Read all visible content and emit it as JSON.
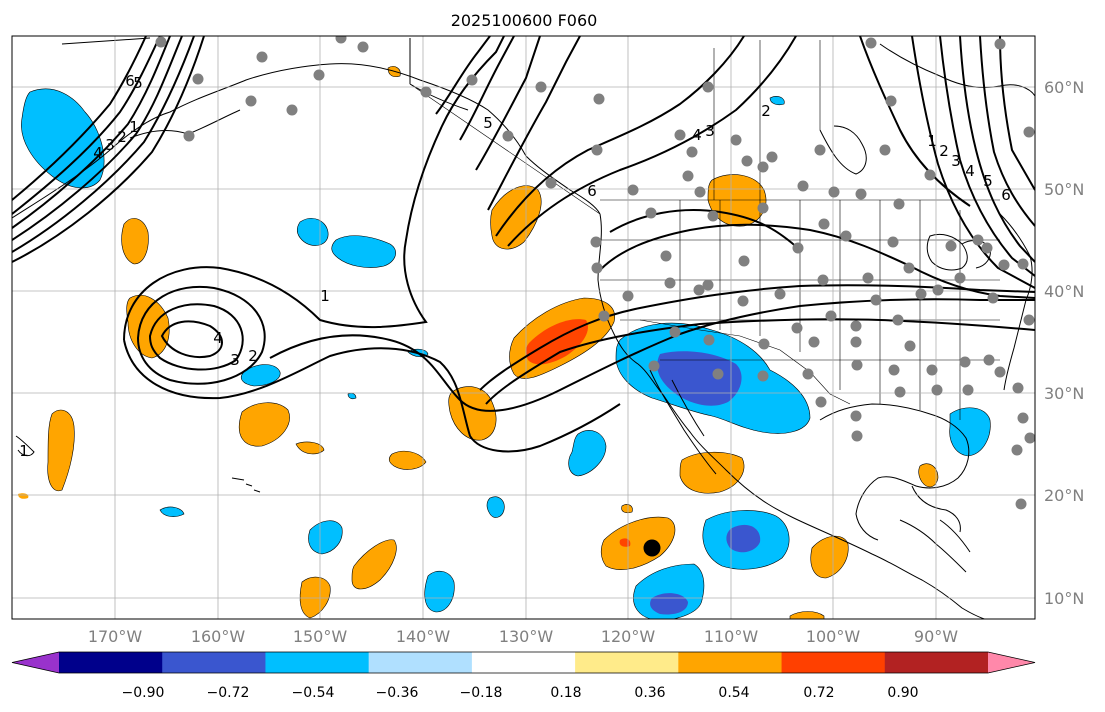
{
  "title": "2025100600 F060",
  "lon_labels": [
    "170°W",
    "160°W",
    "150°W",
    "140°W",
    "130°W",
    "120°W",
    "110°W",
    "100°W",
    "90°W"
  ],
  "lat_labels": [
    "60°N",
    "50°N",
    "40°N",
    "30°N",
    "20°N",
    "10°N"
  ],
  "colorbar": {
    "tick_labels": [
      "−0.90",
      "−0.72",
      "−0.54",
      "−0.36",
      "−0.18",
      "0.18",
      "0.36",
      "0.54",
      "0.72",
      "0.90"
    ],
    "colors": [
      "#9932CC",
      "#00008B",
      "#3A56CF",
      "#00BFFF",
      "#B0E0FF",
      "#FFFFFF",
      "#FFEB8A",
      "#FFA500",
      "#FF4000",
      "#B22222",
      "#FF88AA"
    ]
  },
  "contour_labels": [
    "1",
    "2",
    "3",
    "4",
    "5",
    "6",
    "1",
    "2",
    "3",
    "4",
    "5",
    "6",
    "1",
    "2",
    "3",
    "4",
    "1",
    "2",
    "3",
    "4",
    "5",
    "6"
  ],
  "marker_label": "",
  "colors": {
    "orange": "#FFA500",
    "red": "#FF4500",
    "blue": "#00BFFF",
    "darkblue": "#3A56CF",
    "station": "#808080",
    "grid": "#b0b0b0",
    "axis_text": "#808080"
  }
}
